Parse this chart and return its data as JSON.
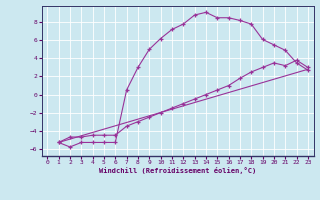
{
  "xlabel": "Windchill (Refroidissement éolien,°C)",
  "bg_color": "#cce8f0",
  "line_color": "#993399",
  "grid_color": "#ffffff",
  "xlim": [
    -0.5,
    23.5
  ],
  "ylim": [
    -6.8,
    9.8
  ],
  "xticks": [
    0,
    1,
    2,
    3,
    4,
    5,
    6,
    7,
    8,
    9,
    10,
    11,
    12,
    13,
    14,
    15,
    16,
    17,
    18,
    19,
    20,
    21,
    22,
    23
  ],
  "yticks": [
    -6,
    -4,
    -2,
    0,
    2,
    4,
    6,
    8
  ],
  "line1_x": [
    1,
    2,
    3,
    4,
    5,
    6,
    7,
    8,
    9,
    10,
    11,
    12,
    13,
    14,
    15,
    16,
    17,
    18,
    19,
    20,
    21,
    22,
    23
  ],
  "line1_y": [
    -5.3,
    -5.8,
    -5.3,
    -5.3,
    -5.3,
    -5.3,
    0.5,
    3.0,
    5.0,
    6.2,
    7.2,
    7.8,
    8.8,
    9.1,
    8.5,
    8.5,
    8.2,
    7.8,
    6.1,
    5.5,
    4.9,
    3.5,
    2.7
  ],
  "line2_x": [
    1,
    2,
    3,
    4,
    5,
    6,
    7,
    8,
    9,
    10,
    11,
    12,
    13,
    14,
    15,
    16,
    17,
    18,
    19,
    20,
    21,
    22,
    23
  ],
  "line2_y": [
    -5.3,
    -4.7,
    -4.7,
    -4.5,
    -4.5,
    -4.5,
    -3.5,
    -3.0,
    -2.5,
    -2.0,
    -1.5,
    -1.0,
    -0.5,
    0.0,
    0.5,
    1.0,
    1.8,
    2.5,
    3.0,
    3.5,
    3.2,
    3.8,
    3.0
  ],
  "line3_x": [
    1,
    23
  ],
  "line3_y": [
    -5.3,
    2.8
  ]
}
